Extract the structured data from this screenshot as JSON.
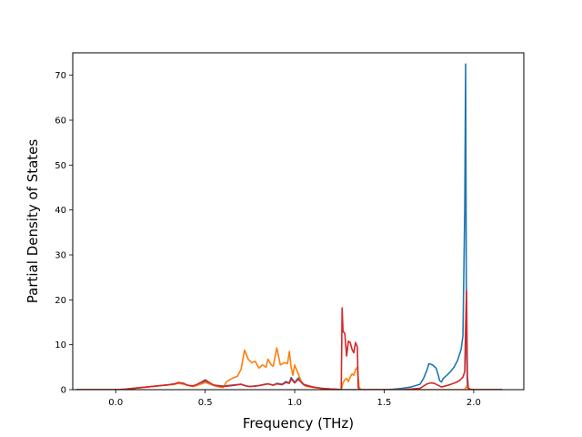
{
  "chart_data": {
    "type": "line",
    "title": "",
    "xlabel": "Frequency (THz)",
    "ylabel": "Partial Density of States",
    "xlim": [
      -0.24,
      2.28
    ],
    "ylim": [
      0,
      75
    ],
    "xticks": [
      0.0,
      0.5,
      1.0,
      1.5,
      2.0
    ],
    "xtick_labels": [
      "0.0",
      "0.5",
      "1.0",
      "1.5",
      "2.0"
    ],
    "yticks": [
      0,
      10,
      20,
      30,
      40,
      50,
      60,
      70
    ],
    "ytick_labels": [
      "0",
      "10",
      "20",
      "30",
      "40",
      "50",
      "60",
      "70"
    ],
    "grid": false,
    "series": [
      {
        "color": "#1f77b4",
        "x": [
          -0.22,
          0.0,
          0.05,
          0.1,
          0.15,
          0.2,
          0.25,
          0.3,
          0.33,
          0.35,
          0.38,
          0.4,
          0.43,
          0.45,
          0.48,
          0.5,
          0.53,
          0.55,
          0.6,
          0.65,
          0.7,
          0.73,
          0.75,
          0.8,
          0.85,
          0.88,
          0.9,
          0.93,
          0.95,
          0.97,
          0.98,
          1.0,
          1.02,
          1.05,
          1.1,
          1.15,
          1.2,
          1.25,
          1.26,
          1.27,
          1.28,
          1.3,
          1.32,
          1.34,
          1.35,
          1.36,
          1.37,
          1.4,
          1.5,
          1.55,
          1.6,
          1.65,
          1.7,
          1.72,
          1.74,
          1.75,
          1.77,
          1.79,
          1.8,
          1.81,
          1.82,
          1.83,
          1.85,
          1.87,
          1.89,
          1.91,
          1.93,
          1.94,
          1.95,
          1.955,
          1.96,
          1.965,
          1.97,
          1.98,
          2.0,
          2.05,
          2.1,
          2.16
        ],
        "y": [
          0,
          0,
          0.1,
          0.3,
          0.5,
          0.7,
          0.9,
          1.1,
          1.3,
          1.5,
          1.3,
          1.0,
          0.8,
          1.0,
          1.5,
          1.8,
          1.3,
          1.0,
          0.8,
          1.0,
          1.2,
          0.8,
          0.7,
          0.9,
          1.3,
          1.0,
          1.4,
          1.2,
          1.8,
          1.5,
          2.7,
          1.6,
          2.6,
          1.2,
          0.6,
          0.3,
          0.15,
          0.05,
          0,
          0,
          0,
          0,
          0,
          0,
          0,
          0,
          0,
          0,
          0,
          0.1,
          0.3,
          0.6,
          1.2,
          2.5,
          4.5,
          5.8,
          5.5,
          4.8,
          3.5,
          2.0,
          1.7,
          2.5,
          3.2,
          4.0,
          5.0,
          6.5,
          9.0,
          12.0,
          40.0,
          72.5,
          8.0,
          1.0,
          0.2,
          0,
          0,
          0,
          0,
          0
        ]
      },
      {
        "color": "#ff7f0e",
        "x": [
          -0.22,
          0.0,
          0.05,
          0.1,
          0.15,
          0.2,
          0.25,
          0.3,
          0.33,
          0.35,
          0.38,
          0.4,
          0.43,
          0.45,
          0.48,
          0.5,
          0.53,
          0.55,
          0.58,
          0.6,
          0.62,
          0.65,
          0.68,
          0.7,
          0.72,
          0.74,
          0.76,
          0.78,
          0.8,
          0.82,
          0.84,
          0.85,
          0.87,
          0.88,
          0.9,
          0.92,
          0.94,
          0.96,
          0.97,
          0.98,
          0.99,
          1.0,
          1.02,
          1.04,
          1.06,
          1.1,
          1.15,
          1.2,
          1.25,
          1.26,
          1.27,
          1.28,
          1.29,
          1.3,
          1.31,
          1.32,
          1.33,
          1.34,
          1.35,
          1.36,
          1.37,
          1.4,
          1.5,
          1.6,
          1.7,
          1.8,
          1.9,
          1.95,
          1.96,
          1.97,
          1.98,
          2.0,
          2.16
        ],
        "y": [
          0,
          0,
          0.1,
          0.3,
          0.5,
          0.7,
          0.9,
          1.1,
          1.2,
          1.4,
          1.2,
          1.0,
          0.7,
          0.9,
          1.3,
          1.6,
          1.2,
          0.9,
          0.6,
          0.5,
          1.8,
          2.5,
          3.0,
          4.5,
          8.8,
          6.8,
          6.0,
          6.3,
          4.8,
          5.5,
          5.0,
          6.8,
          5.5,
          5.2,
          9.3,
          5.5,
          6.0,
          5.8,
          8.5,
          5.0,
          3.2,
          5.5,
          3.5,
          1.5,
          0.8,
          0.5,
          0.3,
          0.15,
          0.05,
          0,
          1.5,
          2.2,
          2.5,
          1.8,
          2.8,
          3.5,
          3.2,
          4.5,
          5.0,
          0.5,
          0,
          0,
          0,
          0,
          0,
          0,
          0,
          0,
          0.8,
          0,
          0,
          0,
          0
        ]
      },
      {
        "color": "#d62728",
        "x": [
          -0.22,
          0.0,
          0.05,
          0.1,
          0.15,
          0.2,
          0.25,
          0.3,
          0.33,
          0.35,
          0.38,
          0.4,
          0.43,
          0.45,
          0.48,
          0.5,
          0.53,
          0.55,
          0.6,
          0.65,
          0.7,
          0.73,
          0.75,
          0.8,
          0.85,
          0.88,
          0.9,
          0.93,
          0.95,
          0.97,
          0.98,
          1.0,
          1.02,
          1.05,
          1.1,
          1.15,
          1.2,
          1.25,
          1.26,
          1.265,
          1.27,
          1.28,
          1.29,
          1.3,
          1.31,
          1.32,
          1.33,
          1.34,
          1.35,
          1.355,
          1.36,
          1.37,
          1.4,
          1.5,
          1.6,
          1.7,
          1.72,
          1.74,
          1.76,
          1.78,
          1.8,
          1.82,
          1.85,
          1.88,
          1.9,
          1.92,
          1.94,
          1.95,
          1.955,
          1.96,
          1.965,
          1.97,
          1.98,
          2.0,
          2.16
        ],
        "y": [
          0,
          0,
          0.1,
          0.3,
          0.5,
          0.7,
          0.9,
          1.1,
          1.3,
          1.6,
          1.4,
          1.0,
          0.8,
          1.1,
          1.7,
          2.2,
          1.4,
          1.0,
          0.7,
          0.9,
          1.2,
          0.8,
          0.7,
          0.9,
          1.3,
          1.0,
          1.3,
          1.1,
          1.6,
          1.4,
          2.4,
          1.5,
          2.3,
          1.1,
          0.6,
          0.3,
          0.15,
          0.05,
          0,
          18.2,
          13.0,
          12.5,
          7.5,
          10.8,
          10.5,
          9.0,
          8.2,
          10.5,
          9.5,
          0.5,
          0,
          0,
          0,
          0,
          0,
          0.3,
          0.8,
          1.3,
          1.5,
          1.4,
          1.0,
          0.6,
          0.9,
          1.3,
          1.6,
          2.0,
          2.8,
          4.0,
          14.0,
          22.0,
          3.0,
          0.4,
          0.1,
          0,
          0
        ]
      }
    ]
  }
}
